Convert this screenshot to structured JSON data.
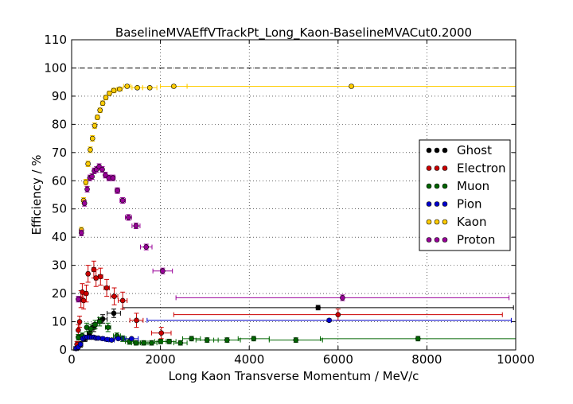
{
  "chart_data": {
    "type": "scatter",
    "title": "BaselineMVAEffVTrackPt_Long_Kaon-BaselineMVACut0.2000",
    "xlabel": "Long Kaon Transverse Momentum / MeV/c",
    "ylabel": "Efficiency / %",
    "xlim": [
      0,
      10000
    ],
    "ylim": [
      0,
      110
    ],
    "xticks": [
      0,
      2000,
      4000,
      6000,
      8000,
      10000
    ],
    "yticks": [
      0,
      10,
      20,
      30,
      40,
      50,
      60,
      70,
      80,
      90,
      100,
      110
    ],
    "grid": true,
    "reference_line": 100,
    "legend_position": "right",
    "series": [
      {
        "name": "Ghost",
        "color": "#000000",
        "points": [
          {
            "x": 100,
            "y": 0.5,
            "xerr": 50,
            "yerr": 0.5
          },
          {
            "x": 200,
            "y": 2,
            "xerr": 50,
            "yerr": 1
          },
          {
            "x": 300,
            "y": 4,
            "xerr": 50,
            "yerr": 1
          },
          {
            "x": 400,
            "y": 6,
            "xerr": 50,
            "yerr": 1.5
          },
          {
            "x": 500,
            "y": 8,
            "xerr": 50,
            "yerr": 1.5
          },
          {
            "x": 700,
            "y": 11,
            "xerr": 100,
            "yerr": 1.5
          },
          {
            "x": 950,
            "y": 13,
            "xerr": 150,
            "yerr": 1.5
          },
          {
            "x": 5550,
            "y": 15,
            "xerr": 4400,
            "yerr": 0.8
          }
        ]
      },
      {
        "name": "Electron",
        "color": "#cc0000",
        "points": [
          {
            "x": 120,
            "y": 2,
            "xerr": 20,
            "yerr": 1
          },
          {
            "x": 150,
            "y": 7,
            "xerr": 20,
            "yerr": 2
          },
          {
            "x": 180,
            "y": 10,
            "xerr": 20,
            "yerr": 2
          },
          {
            "x": 210,
            "y": 18,
            "xerr": 20,
            "yerr": 3
          },
          {
            "x": 240,
            "y": 20.5,
            "xerr": 20,
            "yerr": 3
          },
          {
            "x": 270,
            "y": 17.5,
            "xerr": 20,
            "yerr": 3
          },
          {
            "x": 330,
            "y": 20,
            "xerr": 30,
            "yerr": 3
          },
          {
            "x": 370,
            "y": 27,
            "xerr": 30,
            "yerr": 3
          },
          {
            "x": 500,
            "y": 28.5,
            "xerr": 40,
            "yerr": 3
          },
          {
            "x": 550,
            "y": 25.5,
            "xerr": 40,
            "yerr": 3
          },
          {
            "x": 650,
            "y": 26,
            "xerr": 50,
            "yerr": 3
          },
          {
            "x": 790,
            "y": 22,
            "xerr": 60,
            "yerr": 3
          },
          {
            "x": 960,
            "y": 19,
            "xerr": 80,
            "yerr": 3
          },
          {
            "x": 1150,
            "y": 17.5,
            "xerr": 100,
            "yerr": 3
          },
          {
            "x": 1460,
            "y": 10.5,
            "xerr": 150,
            "yerr": 2.5
          },
          {
            "x": 2020,
            "y": 6,
            "xerr": 220,
            "yerr": 2
          },
          {
            "x": 6000,
            "y": 12.5,
            "xerr": 3700,
            "yerr": 2
          }
        ]
      },
      {
        "name": "Muon",
        "color": "#006600",
        "points": [
          {
            "x": 150,
            "y": 4.5,
            "xerr": 30,
            "yerr": 1
          },
          {
            "x": 240,
            "y": 5,
            "xerr": 30,
            "yerr": 1
          },
          {
            "x": 340,
            "y": 8,
            "xerr": 30,
            "yerr": 1.5
          },
          {
            "x": 430,
            "y": 7.5,
            "xerr": 40,
            "yerr": 1.5
          },
          {
            "x": 530,
            "y": 9,
            "xerr": 40,
            "yerr": 1.5
          },
          {
            "x": 630,
            "y": 10,
            "xerr": 50,
            "yerr": 1.5
          },
          {
            "x": 820,
            "y": 8,
            "xerr": 60,
            "yerr": 1.5
          },
          {
            "x": 1020,
            "y": 5,
            "xerr": 80,
            "yerr": 1
          },
          {
            "x": 1150,
            "y": 4,
            "xerr": 80,
            "yerr": 1
          },
          {
            "x": 1300,
            "y": 3,
            "xerr": 90,
            "yerr": 1
          },
          {
            "x": 1450,
            "y": 2.5,
            "xerr": 100,
            "yerr": 0.8
          },
          {
            "x": 1620,
            "y": 2.5,
            "xerr": 100,
            "yerr": 0.8
          },
          {
            "x": 1800,
            "y": 2.5,
            "xerr": 120,
            "yerr": 0.8
          },
          {
            "x": 2000,
            "y": 3,
            "xerr": 130,
            "yerr": 0.8
          },
          {
            "x": 2200,
            "y": 3,
            "xerr": 150,
            "yerr": 0.8
          },
          {
            "x": 2450,
            "y": 2.5,
            "xerr": 150,
            "yerr": 0.8
          },
          {
            "x": 2700,
            "y": 4,
            "xerr": 200,
            "yerr": 0.8
          },
          {
            "x": 3050,
            "y": 3.5,
            "xerr": 250,
            "yerr": 0.8
          },
          {
            "x": 3500,
            "y": 3.5,
            "xerr": 300,
            "yerr": 0.8
          },
          {
            "x": 4100,
            "y": 4,
            "xerr": 350,
            "yerr": 0.8
          },
          {
            "x": 5050,
            "y": 3.5,
            "xerr": 600,
            "yerr": 0.8
          },
          {
            "x": 7800,
            "y": 4,
            "xerr": 2200,
            "yerr": 0.8
          }
        ]
      },
      {
        "name": "Pion",
        "color": "#0000cc",
        "points": [
          {
            "x": 100,
            "y": 0.5,
            "xerr": 30,
            "yerr": 0.3
          },
          {
            "x": 150,
            "y": 1,
            "xerr": 30,
            "yerr": 0.3
          },
          {
            "x": 200,
            "y": 2,
            "xerr": 20,
            "yerr": 0.3
          },
          {
            "x": 250,
            "y": 4,
            "xerr": 20,
            "yerr": 0.3
          },
          {
            "x": 300,
            "y": 4.5,
            "xerr": 20,
            "yerr": 0.3
          },
          {
            "x": 350,
            "y": 4.5,
            "xerr": 20,
            "yerr": 0.3
          },
          {
            "x": 400,
            "y": 4.5,
            "xerr": 20,
            "yerr": 0.3
          },
          {
            "x": 450,
            "y": 4.5,
            "xerr": 20,
            "yerr": 0.3
          },
          {
            "x": 500,
            "y": 4.5,
            "xerr": 20,
            "yerr": 0.3
          },
          {
            "x": 550,
            "y": 4.2,
            "xerr": 20,
            "yerr": 0.3
          },
          {
            "x": 600,
            "y": 4.2,
            "xerr": 25,
            "yerr": 0.3
          },
          {
            "x": 700,
            "y": 4,
            "xerr": 40,
            "yerr": 0.3
          },
          {
            "x": 800,
            "y": 3.7,
            "xerr": 50,
            "yerr": 0.3
          },
          {
            "x": 900,
            "y": 3.5,
            "xerr": 60,
            "yerr": 0.3
          },
          {
            "x": 1050,
            "y": 4,
            "xerr": 80,
            "yerr": 0.3
          },
          {
            "x": 1350,
            "y": 4,
            "xerr": 150,
            "yerr": 0.3
          },
          {
            "x": 5800,
            "y": 10.5,
            "xerr": 4100,
            "yerr": 0.5
          }
        ]
      },
      {
        "name": "Kaon",
        "color": "#ffcc00",
        "points": [
          {
            "x": 220,
            "y": 42.5,
            "xerr": 20,
            "yerr": 1
          },
          {
            "x": 270,
            "y": 53,
            "xerr": 20,
            "yerr": 1
          },
          {
            "x": 320,
            "y": 59.5,
            "xerr": 20,
            "yerr": 1
          },
          {
            "x": 370,
            "y": 66,
            "xerr": 20,
            "yerr": 1
          },
          {
            "x": 420,
            "y": 71,
            "xerr": 20,
            "yerr": 1
          },
          {
            "x": 470,
            "y": 75,
            "xerr": 20,
            "yerr": 1
          },
          {
            "x": 520,
            "y": 79.5,
            "xerr": 20,
            "yerr": 1
          },
          {
            "x": 580,
            "y": 82.5,
            "xerr": 25,
            "yerr": 0.8
          },
          {
            "x": 640,
            "y": 85,
            "xerr": 25,
            "yerr": 0.8
          },
          {
            "x": 700,
            "y": 87.5,
            "xerr": 30,
            "yerr": 0.8
          },
          {
            "x": 770,
            "y": 89.5,
            "xerr": 35,
            "yerr": 0.8
          },
          {
            "x": 850,
            "y": 91,
            "xerr": 40,
            "yerr": 0.8
          },
          {
            "x": 950,
            "y": 92,
            "xerr": 50,
            "yerr": 0.8
          },
          {
            "x": 1080,
            "y": 92.5,
            "xerr": 60,
            "yerr": 0.5
          },
          {
            "x": 1250,
            "y": 93.5,
            "xerr": 80,
            "yerr": 0.5
          },
          {
            "x": 1480,
            "y": 93,
            "xerr": 120,
            "yerr": 0.5
          },
          {
            "x": 1760,
            "y": 93,
            "xerr": 160,
            "yerr": 0.5
          },
          {
            "x": 2300,
            "y": 93.5,
            "xerr": 300,
            "yerr": 0.5
          },
          {
            "x": 6300,
            "y": 93.5,
            "xerr": 3700,
            "yerr": 0.5
          }
        ]
      },
      {
        "name": "Proton",
        "color": "#990099",
        "points": [
          {
            "x": 150,
            "y": 18,
            "xerr": 30,
            "yerr": 1
          },
          {
            "x": 220,
            "y": 41.5,
            "xerr": 20,
            "yerr": 1
          },
          {
            "x": 290,
            "y": 52,
            "xerr": 20,
            "yerr": 1
          },
          {
            "x": 350,
            "y": 57,
            "xerr": 20,
            "yerr": 1
          },
          {
            "x": 410,
            "y": 61,
            "xerr": 20,
            "yerr": 1
          },
          {
            "x": 460,
            "y": 61.5,
            "xerr": 20,
            "yerr": 1
          },
          {
            "x": 510,
            "y": 63.5,
            "xerr": 20,
            "yerr": 1
          },
          {
            "x": 560,
            "y": 64,
            "xerr": 20,
            "yerr": 1
          },
          {
            "x": 620,
            "y": 65,
            "xerr": 25,
            "yerr": 1
          },
          {
            "x": 690,
            "y": 64,
            "xerr": 30,
            "yerr": 1
          },
          {
            "x": 760,
            "y": 62,
            "xerr": 30,
            "yerr": 1
          },
          {
            "x": 840,
            "y": 61,
            "xerr": 40,
            "yerr": 1
          },
          {
            "x": 930,
            "y": 61,
            "xerr": 50,
            "yerr": 1
          },
          {
            "x": 1030,
            "y": 56.5,
            "xerr": 50,
            "yerr": 1
          },
          {
            "x": 1150,
            "y": 53,
            "xerr": 60,
            "yerr": 1
          },
          {
            "x": 1280,
            "y": 47,
            "xerr": 70,
            "yerr": 1
          },
          {
            "x": 1450,
            "y": 44,
            "xerr": 90,
            "yerr": 1
          },
          {
            "x": 1680,
            "y": 36.5,
            "xerr": 130,
            "yerr": 1
          },
          {
            "x": 2050,
            "y": 28,
            "xerr": 220,
            "yerr": 1
          },
          {
            "x": 6100,
            "y": 18.5,
            "xerr": 3750,
            "yerr": 1
          }
        ]
      }
    ]
  }
}
